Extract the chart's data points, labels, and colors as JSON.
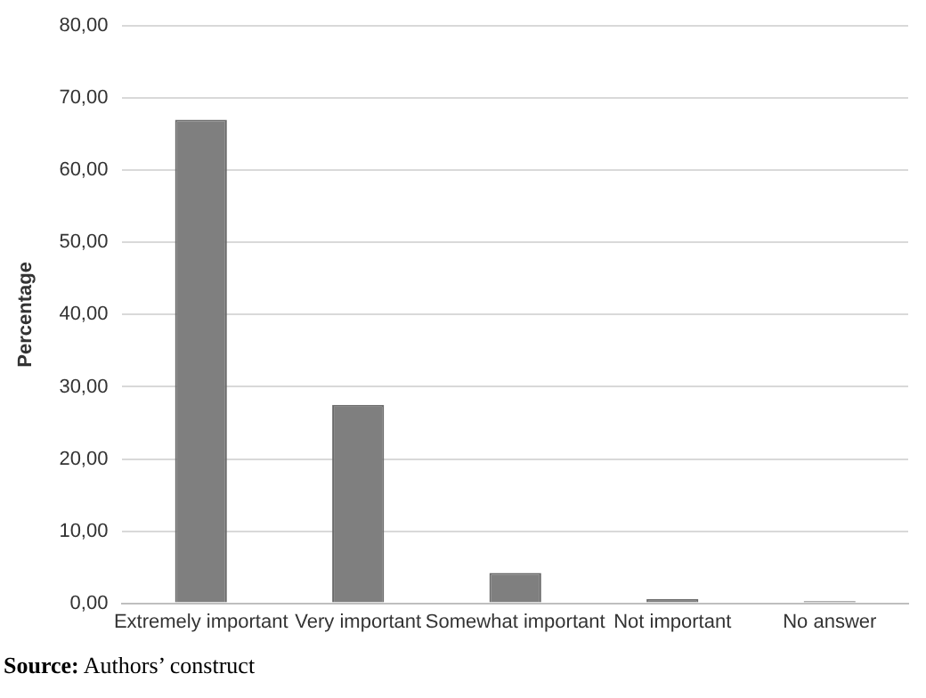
{
  "chart_data": {
    "type": "bar",
    "ylabel": "Percentage",
    "categories": [
      "Extremely important",
      "Very important",
      "Somewhat important",
      "Not important",
      "No answer"
    ],
    "values": [
      67.0,
      27.5,
      4.2,
      0.6,
      0.3
    ],
    "color": "#7f7f7f",
    "ylim": [
      0,
      80
    ],
    "yticks": [
      {
        "value": 0,
        "label": "0,00"
      },
      {
        "value": 10,
        "label": "10,00"
      },
      {
        "value": 20,
        "label": "20,00"
      },
      {
        "value": 30,
        "label": "30,00"
      },
      {
        "value": 40,
        "label": "40,00"
      },
      {
        "value": 50,
        "label": "50,00"
      },
      {
        "value": 60,
        "label": "60,00"
      },
      {
        "value": 70,
        "label": "70,00"
      },
      {
        "value": 80,
        "label": "80,00"
      }
    ],
    "grid": "y",
    "annotations": [
      "Source: Authors’ construct"
    ]
  }
}
